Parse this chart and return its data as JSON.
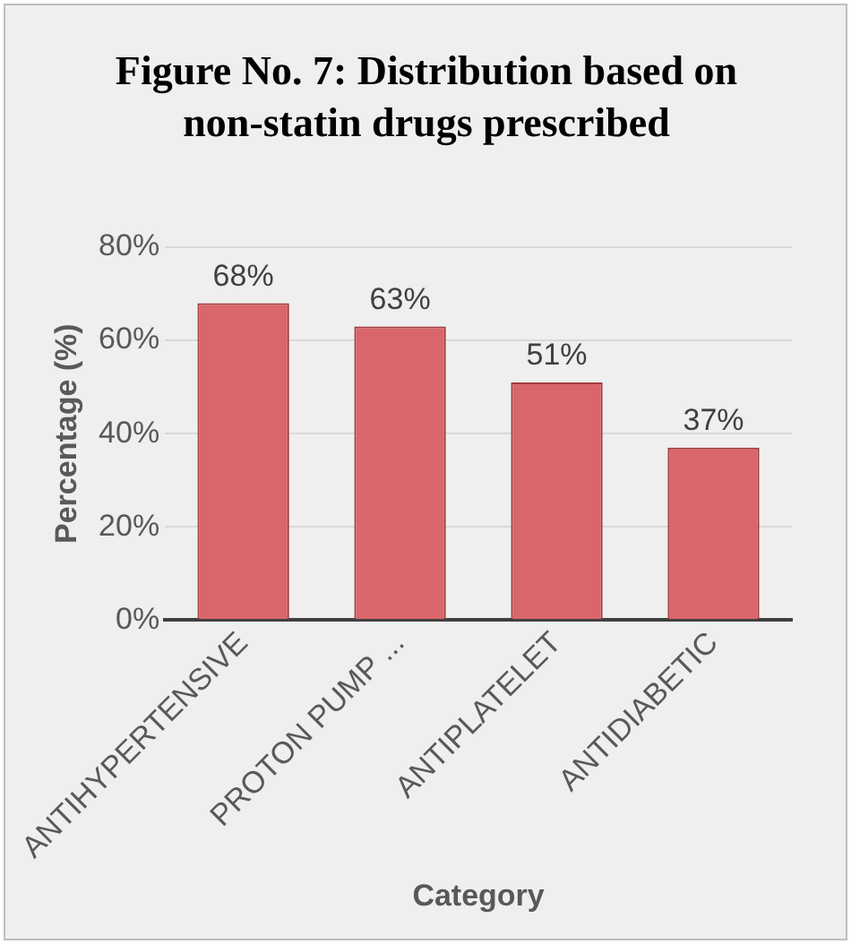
{
  "chart_data": {
    "type": "bar",
    "title": "Figure No. 7: Distribution based on non-statin drugs prescribed",
    "xlabel": "Category",
    "ylabel": "Percentage (%)",
    "categories": [
      "ANTIHYPERTENSIVE",
      "PROTON PUMP ...",
      "ANTIPLATELET",
      "ANTIDIABETIC"
    ],
    "values": [
      68,
      63,
      51,
      37
    ],
    "color": "#d9666a",
    "value_labels": [
      "68%",
      "63%",
      "51%",
      "37%"
    ],
    "ylim": [
      0,
      80
    ],
    "yticks": [
      {
        "value": 0,
        "label": "0%"
      },
      {
        "value": 20,
        "label": "20%"
      },
      {
        "value": 40,
        "label": "40%"
      },
      {
        "value": 60,
        "label": "60%"
      },
      {
        "value": 80,
        "label": "80%"
      }
    ],
    "grid": "y",
    "legend": false
  }
}
